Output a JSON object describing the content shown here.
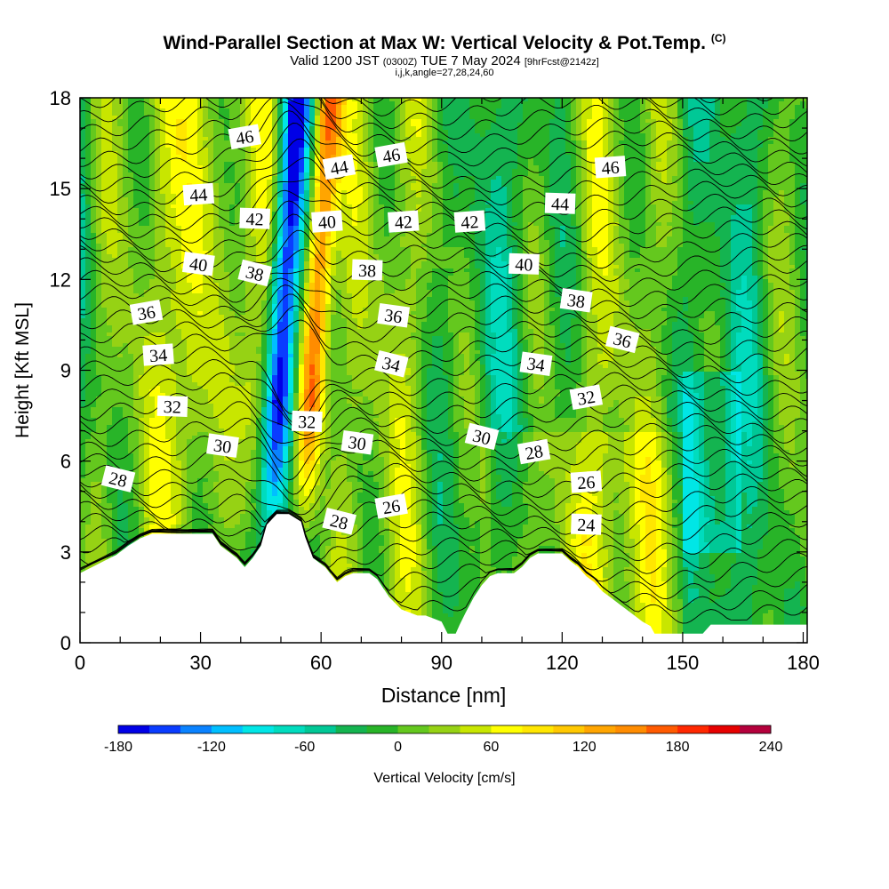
{
  "header": {
    "title": "Wind-Parallel Section at Max W: Vertical Velocity & Pot.Temp.",
    "copyright": "(C)",
    "valid_prefix": "Valid 1200 JST",
    "valid_utc": "(0300Z)",
    "valid_date": "TUE 7 May 2024",
    "forecast": "[9hrFcst@2142z]",
    "indices": "i,j,k,angle=27,28,24,60"
  },
  "chart_data": {
    "type": "heatmap",
    "title": "Wind-Parallel Section at Max W: Vertical Velocity & Pot.Temp.",
    "xlabel": "Distance [nm]",
    "ylabel": "Height [Kft MSL]",
    "xlim": [
      0,
      181
    ],
    "ylim": [
      0,
      18
    ],
    "x_ticks": [
      0,
      30,
      60,
      90,
      120,
      150,
      180
    ],
    "y_ticks": [
      0,
      3,
      6,
      9,
      12,
      15,
      18
    ],
    "colorbar": {
      "label": "Vertical Velocity [cm/s]",
      "min": -180,
      "max": 240,
      "step": 20,
      "tick_values": [
        -180,
        -120,
        -60,
        0,
        60,
        120,
        180,
        240
      ],
      "colors": [
        "#0000e6",
        "#0a3cff",
        "#0a82ff",
        "#00bfff",
        "#00e6e6",
        "#00dcbe",
        "#00c896",
        "#14b450",
        "#28b428",
        "#64c81e",
        "#96d214",
        "#c8e600",
        "#ffff00",
        "#ffe600",
        "#ffc800",
        "#ffa500",
        "#ff8c00",
        "#ff5a00",
        "#ff2800",
        "#e60000",
        "#b4003c",
        "#a00078"
      ]
    },
    "vertical_velocity_features": [
      {
        "kind": "downdraft",
        "x": 50,
        "min_value": -180
      },
      {
        "kind": "updraft",
        "x": 58,
        "max_value": 180
      },
      {
        "kind": "updraft",
        "x": 44,
        "max_value": 110
      },
      {
        "kind": "updraft",
        "x": 28,
        "max_value": 60
      }
    ],
    "theta_contours": {
      "units": "K",
      "interval": 1,
      "labels": [
        {
          "v": 46,
          "x": 41,
          "y": 16.7
        },
        {
          "v": 44,
          "x": 29.5,
          "y": 14.8
        },
        {
          "v": 42,
          "x": 43.5,
          "y": 14.0
        },
        {
          "v": 40,
          "x": 29.5,
          "y": 12.5
        },
        {
          "v": 38,
          "x": 43.5,
          "y": 12.2
        },
        {
          "v": 36,
          "x": 16.5,
          "y": 10.9
        },
        {
          "v": 34,
          "x": 19.5,
          "y": 9.5
        },
        {
          "v": 32,
          "x": 23,
          "y": 7.8
        },
        {
          "v": 30,
          "x": 35.5,
          "y": 6.5
        },
        {
          "v": 28,
          "x": 9.5,
          "y": 5.4
        },
        {
          "v": 44,
          "x": 64.5,
          "y": 15.7
        },
        {
          "v": 40,
          "x": 61.5,
          "y": 13.9
        },
        {
          "v": 32,
          "x": 56.5,
          "y": 7.3
        },
        {
          "v": 30,
          "x": 69,
          "y": 6.6
        },
        {
          "v": 28,
          "x": 64.5,
          "y": 4.0
        },
        {
          "v": 46,
          "x": 77.5,
          "y": 16.1
        },
        {
          "v": 42,
          "x": 80.5,
          "y": 13.9
        },
        {
          "v": 38,
          "x": 71.5,
          "y": 12.3
        },
        {
          "v": 36,
          "x": 78,
          "y": 10.8
        },
        {
          "v": 34,
          "x": 77.5,
          "y": 9.2
        },
        {
          "v": 26,
          "x": 77.5,
          "y": 4.5
        },
        {
          "v": 42,
          "x": 97,
          "y": 13.9
        },
        {
          "v": 40,
          "x": 110.5,
          "y": 12.5
        },
        {
          "v": 34,
          "x": 113.5,
          "y": 9.2
        },
        {
          "v": 30,
          "x": 100,
          "y": 6.8
        },
        {
          "v": 28,
          "x": 113,
          "y": 6.3
        },
        {
          "v": 46,
          "x": 132,
          "y": 15.7
        },
        {
          "v": 44,
          "x": 119.5,
          "y": 14.5
        },
        {
          "v": 38,
          "x": 123.5,
          "y": 11.3
        },
        {
          "v": 36,
          "x": 135,
          "y": 10.0
        },
        {
          "v": 32,
          "x": 126,
          "y": 8.1
        },
        {
          "v": 26,
          "x": 126,
          "y": 5.3
        },
        {
          "v": 24,
          "x": 126,
          "y": 3.9
        }
      ]
    },
    "terrain_kft": [
      [
        0,
        2.3
      ],
      [
        3,
        2.5
      ],
      [
        6,
        2.7
      ],
      [
        9,
        2.9
      ],
      [
        12,
        3.2
      ],
      [
        15,
        3.45
      ],
      [
        18,
        3.6
      ],
      [
        21,
        3.6
      ],
      [
        24,
        3.6
      ],
      [
        27,
        3.6
      ],
      [
        30,
        3.6
      ],
      [
        33,
        3.6
      ],
      [
        35,
        3.2
      ],
      [
        37,
        3.0
      ],
      [
        39,
        2.8
      ],
      [
        41,
        2.5
      ],
      [
        43,
        2.8
      ],
      [
        45,
        3.2
      ],
      [
        46.5,
        3.9
      ],
      [
        49,
        4.25
      ],
      [
        52,
        4.25
      ],
      [
        55,
        4.0
      ],
      [
        56,
        3.5
      ],
      [
        58,
        2.8
      ],
      [
        61,
        2.5
      ],
      [
        64,
        2.0
      ],
      [
        66,
        2.2
      ],
      [
        68,
        2.3
      ],
      [
        70,
        2.3
      ],
      [
        72,
        2.3
      ],
      [
        74,
        2.1
      ],
      [
        75.5,
        1.8
      ],
      [
        77,
        1.5
      ],
      [
        78.5,
        1.3
      ],
      [
        80,
        1.1
      ],
      [
        82,
        1.0
      ],
      [
        84,
        0.9
      ],
      [
        86,
        0.9
      ],
      [
        88,
        0.8
      ],
      [
        90,
        0.7
      ],
      [
        91.5,
        0.3
      ],
      [
        93.5,
        0.3
      ],
      [
        94.5,
        0.6
      ],
      [
        96,
        1.0
      ],
      [
        98,
        1.5
      ],
      [
        100,
        1.9
      ],
      [
        102,
        2.2
      ],
      [
        104,
        2.3
      ],
      [
        106,
        2.3
      ],
      [
        108,
        2.3
      ],
      [
        110,
        2.5
      ],
      [
        112,
        2.8
      ],
      [
        114,
        2.95
      ],
      [
        117,
        2.95
      ],
      [
        120,
        2.95
      ],
      [
        122,
        2.7
      ],
      [
        124,
        2.5
      ],
      [
        126,
        2.2
      ],
      [
        128,
        2.0
      ],
      [
        130,
        1.7
      ],
      [
        132,
        1.5
      ],
      [
        134,
        1.3
      ],
      [
        136,
        1.1
      ],
      [
        138,
        0.9
      ],
      [
        140,
        0.7
      ],
      [
        142,
        0.55
      ],
      [
        143,
        0.3
      ],
      [
        155,
        0.3
      ],
      [
        157,
        0.6
      ],
      [
        170,
        0.6
      ],
      [
        181,
        0.6
      ]
    ]
  }
}
